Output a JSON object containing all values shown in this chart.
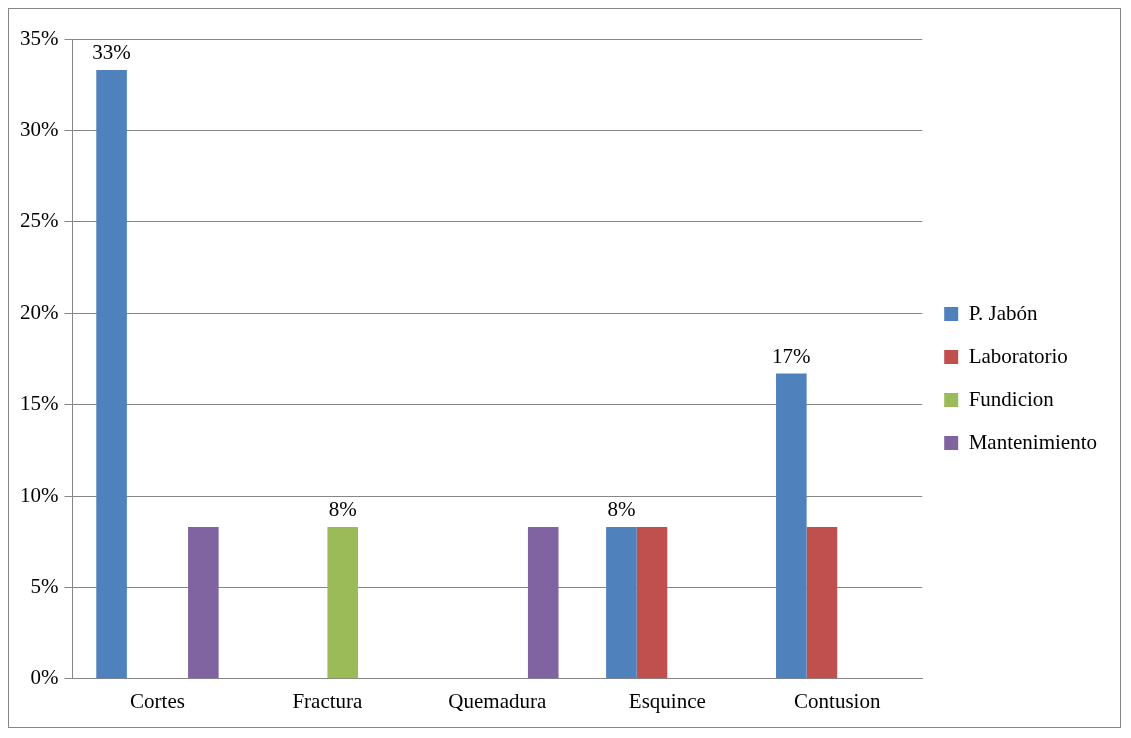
{
  "chart_data": {
    "type": "bar",
    "categories": [
      "Cortes",
      "Fractura",
      "Quemadura",
      "Esquince",
      "Contusion"
    ],
    "series": [
      {
        "name": "P. Jabón",
        "color": "#4f81bd",
        "values": [
          33.3,
          null,
          null,
          8.3,
          16.7
        ],
        "value_labels": [
          "33%",
          null,
          null,
          "8%",
          "17%"
        ]
      },
      {
        "name": "Laboratorio",
        "color": "#c0504d",
        "values": [
          null,
          null,
          null,
          8.3,
          8.3
        ],
        "value_labels": [
          null,
          null,
          null,
          null,
          null
        ]
      },
      {
        "name": "Fundicion",
        "color": "#9bbb59",
        "values": [
          null,
          8.3,
          null,
          null,
          null
        ],
        "value_labels": [
          null,
          "8%",
          null,
          null,
          null
        ]
      },
      {
        "name": "Mantenimiento",
        "color": "#8064a2",
        "values": [
          8.3,
          null,
          8.3,
          null,
          null
        ],
        "value_labels": [
          null,
          null,
          null,
          null,
          null
        ]
      }
    ],
    "ylim": [
      0,
      35
    ],
    "yticks": [
      {
        "value": 0,
        "label": "0%"
      },
      {
        "value": 5,
        "label": "5%"
      },
      {
        "value": 10,
        "label": "10%"
      },
      {
        "value": 15,
        "label": "15%"
      },
      {
        "value": 20,
        "label": "20%"
      },
      {
        "value": 25,
        "label": "25%"
      },
      {
        "value": 30,
        "label": "30%"
      },
      {
        "value": 35,
        "label": "35%"
      }
    ],
    "grid": "y",
    "legend": "right"
  }
}
